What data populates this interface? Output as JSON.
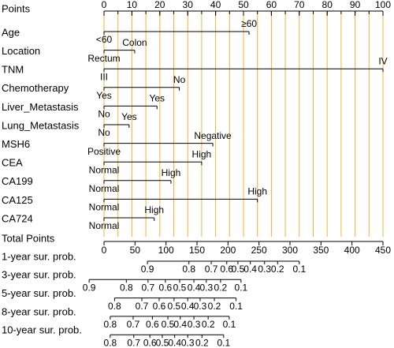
{
  "chart_data": {
    "type": "nomogram",
    "points_axis": {
      "label": "Points",
      "xlim": [
        0,
        100
      ],
      "xticks": [
        0,
        10,
        20,
        30,
        40,
        50,
        60,
        70,
        80,
        90,
        100
      ],
      "grid": [
        0,
        5,
        10,
        15,
        20,
        25,
        30,
        35,
        40,
        45,
        50,
        55,
        60,
        65,
        70,
        75,
        80,
        85,
        90,
        95,
        100
      ],
      "grid_color": "#f3b33d"
    },
    "factors": [
      {
        "name": "Age",
        "levels": [
          {
            "label": "<60",
            "points": 0
          },
          {
            "label": "≥60",
            "points": 52
          }
        ]
      },
      {
        "name": "Location",
        "levels": [
          {
            "label": "Rectum",
            "points": 0
          },
          {
            "label": "Colon",
            "points": 11
          }
        ]
      },
      {
        "name": "TNM",
        "levels": [
          {
            "label": "III",
            "points": 0
          },
          {
            "label": "IV",
            "points": 100
          }
        ]
      },
      {
        "name": "Chemotherapy",
        "levels": [
          {
            "label": "Yes",
            "points": 0
          },
          {
            "label": "No",
            "points": 27
          }
        ]
      },
      {
        "name": "Liver_Metastasis",
        "levels": [
          {
            "label": "No",
            "points": 0
          },
          {
            "label": "Yes",
            "points": 19
          }
        ]
      },
      {
        "name": "Lung_Metastasis",
        "levels": [
          {
            "label": "No",
            "points": 0
          },
          {
            "label": "Yes",
            "points": 9
          }
        ]
      },
      {
        "name": "MSH6",
        "levels": [
          {
            "label": "Positive",
            "points": 0
          },
          {
            "label": "Negative",
            "points": 39
          }
        ]
      },
      {
        "name": "CEA",
        "levels": [
          {
            "label": "Normal",
            "points": 0
          },
          {
            "label": "High",
            "points": 35
          }
        ]
      },
      {
        "name": "CA199",
        "levels": [
          {
            "label": "Normal",
            "points": 0
          },
          {
            "label": "High",
            "points": 24
          }
        ]
      },
      {
        "name": "CA125",
        "levels": [
          {
            "label": "Normal",
            "points": 0
          },
          {
            "label": "High",
            "points": 55
          }
        ]
      },
      {
        "name": "CA724",
        "levels": [
          {
            "label": "Normal",
            "points": 0
          },
          {
            "label": "High",
            "points": 18
          }
        ]
      }
    ],
    "total_axis": {
      "label": "Total Points",
      "xlim": [
        0,
        450
      ],
      "xticks": [
        0,
        50,
        100,
        150,
        200,
        250,
        300,
        350,
        400,
        450
      ]
    },
    "survival_axes": [
      {
        "name": "1-year sur. prob.",
        "ticks": [
          {
            "value": 70,
            "label": "0.9"
          },
          {
            "value": 137,
            "label": "0.8"
          },
          {
            "value": 173,
            "label": "0.7"
          },
          {
            "value": 198,
            "label": "0.6"
          },
          {
            "value": 216,
            "label": "0.5"
          },
          {
            "value": 236,
            "label": "0.4"
          },
          {
            "value": 259,
            "label": "0.3"
          },
          {
            "value": 280,
            "label": "0.2"
          },
          {
            "value": 315,
            "label": "0.1"
          }
        ]
      },
      {
        "name": "3-year sur. prob.",
        "ticks": [
          {
            "value": -24,
            "label": "0.9"
          },
          {
            "value": 36,
            "label": "0.8"
          },
          {
            "value": 71,
            "label": "0.7"
          },
          {
            "value": 99,
            "label": "0.6"
          },
          {
            "value": 122,
            "label": "0.5"
          },
          {
            "value": 145,
            "label": "0.4"
          },
          {
            "value": 165,
            "label": "0.3"
          },
          {
            "value": 188,
            "label": "0.2"
          },
          {
            "value": 221,
            "label": "0.1"
          }
        ]
      },
      {
        "name": "5-year sur. prob.",
        "ticks": [
          {
            "value": 17,
            "label": "0.8"
          },
          {
            "value": 61,
            "label": "0.7"
          },
          {
            "value": 89,
            "label": "0.6"
          },
          {
            "value": 113,
            "label": "0.5"
          },
          {
            "value": 135,
            "label": "0.4"
          },
          {
            "value": 155,
            "label": "0.3"
          },
          {
            "value": 178,
            "label": "0.2"
          },
          {
            "value": 213,
            "label": "0.1"
          }
        ]
      },
      {
        "name": "8-year sur. prob.",
        "ticks": [
          {
            "value": 10,
            "label": "0.8"
          },
          {
            "value": 47,
            "label": "0.7"
          },
          {
            "value": 78,
            "label": "0.6"
          },
          {
            "value": 103,
            "label": "0.5"
          },
          {
            "value": 123,
            "label": "0.4"
          },
          {
            "value": 145,
            "label": "0.3"
          },
          {
            "value": 168,
            "label": "0.2"
          },
          {
            "value": 202,
            "label": "0.1"
          }
        ]
      },
      {
        "name": "10-year sur. prob.",
        "ticks": [
          {
            "value": 10,
            "label": "0.8"
          },
          {
            "value": 48,
            "label": "0.7"
          },
          {
            "value": 74,
            "label": "0.6"
          },
          {
            "value": 94,
            "label": "0.5"
          },
          {
            "value": 114,
            "label": "0.4"
          },
          {
            "value": 135,
            "label": "0.3"
          },
          {
            "value": 158,
            "label": "0.2"
          },
          {
            "value": 193,
            "label": "0.1"
          }
        ]
      }
    ]
  }
}
